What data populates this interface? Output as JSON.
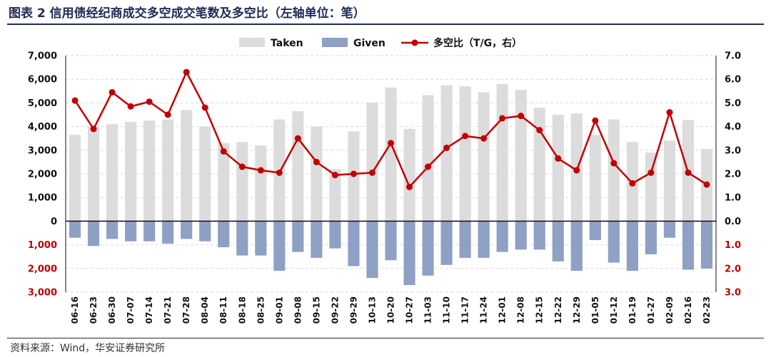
{
  "figure": {
    "title": "图表 2 信用债经纪商成交多空成交笔数及多空比（左轴单位：笔）",
    "source": "资料来源：Wind，华安证券研究所"
  },
  "colors": {
    "taken": "#dcdcdc",
    "given": "#8ea0c4",
    "ratio": "#c00000",
    "axis_neg": "#c00000"
  },
  "chart_data": {
    "type": "bar",
    "categories": [
      "06-16",
      "06-23",
      "06-30",
      "07-07",
      "07-14",
      "07-21",
      "07-28",
      "08-04",
      "08-11",
      "08-18",
      "08-25",
      "09-01",
      "09-08",
      "09-15",
      "09-22",
      "09-29",
      "10-13",
      "10-20",
      "10-27",
      "11-03",
      "11-10",
      "11-17",
      "11-24",
      "12-01",
      "12-08",
      "12-15",
      "12-22",
      "12-29",
      "01-05",
      "01-12",
      "01-19",
      "01-27",
      "02-09",
      "02-16",
      "02-23"
    ],
    "series": [
      {
        "name": "Taken",
        "type": "bar",
        "axis": "left",
        "values": [
          3650,
          4000,
          4100,
          4200,
          4250,
          4300,
          4700,
          4000,
          3300,
          3350,
          3200,
          4300,
          4650,
          4000,
          2200,
          3800,
          5000,
          5650,
          3900,
          5330,
          5750,
          5700,
          5450,
          5800,
          5550,
          4800,
          4500,
          4550,
          3650,
          4300,
          3350,
          2900,
          3400,
          4280,
          3050
        ]
      },
      {
        "name": "Given",
        "type": "bar",
        "axis": "left",
        "values": [
          -700,
          -1050,
          -750,
          -850,
          -850,
          -950,
          -750,
          -850,
          -1100,
          -1450,
          -1450,
          -2100,
          -1300,
          -1550,
          -1150,
          -1900,
          -2400,
          -1650,
          -2700,
          -2300,
          -1850,
          -1550,
          -1550,
          -1300,
          -1200,
          -1200,
          -1700,
          -2100,
          -800,
          -1750,
          -2100,
          -1400,
          -700,
          -2050,
          -2000
        ]
      },
      {
        "name": "多空比（T/G，右）",
        "type": "line",
        "axis": "right",
        "values": [
          5.1,
          3.9,
          5.45,
          4.85,
          5.05,
          4.5,
          6.3,
          4.8,
          2.95,
          2.3,
          2.15,
          2.05,
          3.5,
          2.5,
          1.95,
          2.0,
          2.05,
          3.3,
          1.45,
          2.3,
          3.1,
          3.6,
          3.5,
          4.35,
          4.45,
          3.85,
          2.65,
          2.15,
          4.25,
          2.45,
          1.6,
          2.05,
          4.6,
          2.05,
          1.55
        ]
      }
    ],
    "left_axis": {
      "range": [
        -3000,
        7000
      ],
      "tick_labels": [
        "3,000",
        "2,000",
        "1,000",
        "0",
        "1,000",
        "2,000",
        "3,000",
        "4,000",
        "5,000",
        "6,000",
        "7,000"
      ],
      "tick_values": [
        -3000,
        -2000,
        -1000,
        0,
        1000,
        2000,
        3000,
        4000,
        5000,
        6000,
        7000
      ]
    },
    "right_axis": {
      "range": [
        -3.0,
        7.0
      ],
      "tick_labels": [
        "3.0",
        "2.0",
        "1.0",
        "0.0",
        "1.0",
        "2.0",
        "3.0",
        "4.0",
        "5.0",
        "6.0",
        "7.0"
      ],
      "tick_values": [
        -3,
        -2,
        -1,
        0,
        1,
        2,
        3,
        4,
        5,
        6,
        7
      ]
    },
    "grid": true,
    "legend": {
      "position": "top-center",
      "entries": [
        "Taken",
        "Given",
        "多空比（T/G，右）"
      ]
    }
  }
}
